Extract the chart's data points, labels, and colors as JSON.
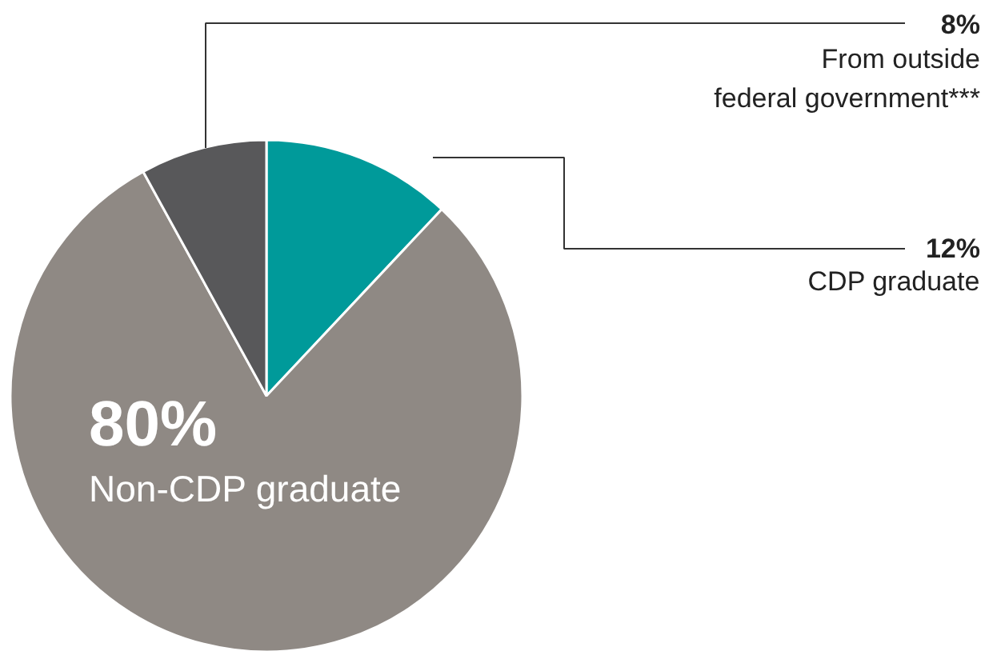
{
  "chart_data": {
    "type": "pie",
    "categories": [
      "CDP graduate",
      "Non-CDP graduate",
      "From outside\nfederal government***"
    ],
    "values": [
      12,
      80,
      8
    ],
    "colors": [
      "#009a9a",
      "#8f8984",
      "#58585a"
    ],
    "value_labels": [
      "12%",
      "80%",
      "8%"
    ]
  }
}
